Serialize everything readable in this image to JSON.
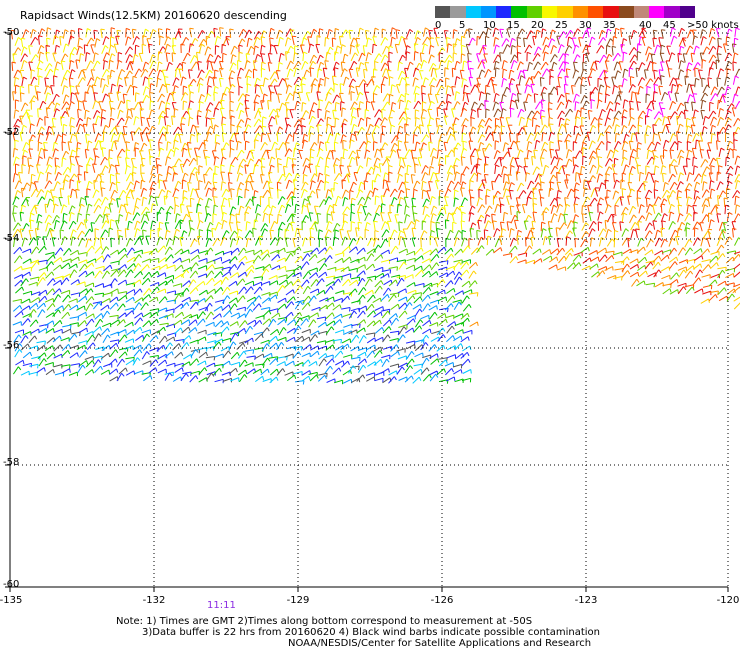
{
  "header": {
    "title": "Rapidsact Winds(12.5KM) 20160620 descending"
  },
  "legend": {
    "colors": [
      "#555555",
      "#9a9a9a",
      "#00c8ff",
      "#0096ff",
      "#1e28ff",
      "#00c000",
      "#60d000",
      "#f8f800",
      "#ffd000",
      "#ff9000",
      "#ff5000",
      "#e81010",
      "#8b4a1e",
      "#c08878",
      "#ff00ff",
      "#a000c8",
      "#50008c"
    ],
    "labels": [
      "0",
      "5",
      "10",
      "15",
      "20",
      "25",
      "30",
      "35",
      "40",
      "45",
      ">50 knots"
    ]
  },
  "axes": {
    "x_ticks": [
      "-135",
      "-132",
      "-129",
      "-126",
      "-123",
      "-120"
    ],
    "y_ticks": [
      "-50",
      "-52",
      "-54",
      "-56",
      "-58",
      "-60"
    ]
  },
  "footer": {
    "time_label": "11:11",
    "note_line1": "Note: 1) Times are GMT 2)Times along bottom correspond to measurement at -50S",
    "note_line2": "3)Data buffer is 22 hrs from 20160620 4) Black wind barbs indicate possible contamination",
    "note_line3": "NOAA/NESDIS/Center for Satellite Applications and Research"
  }
}
